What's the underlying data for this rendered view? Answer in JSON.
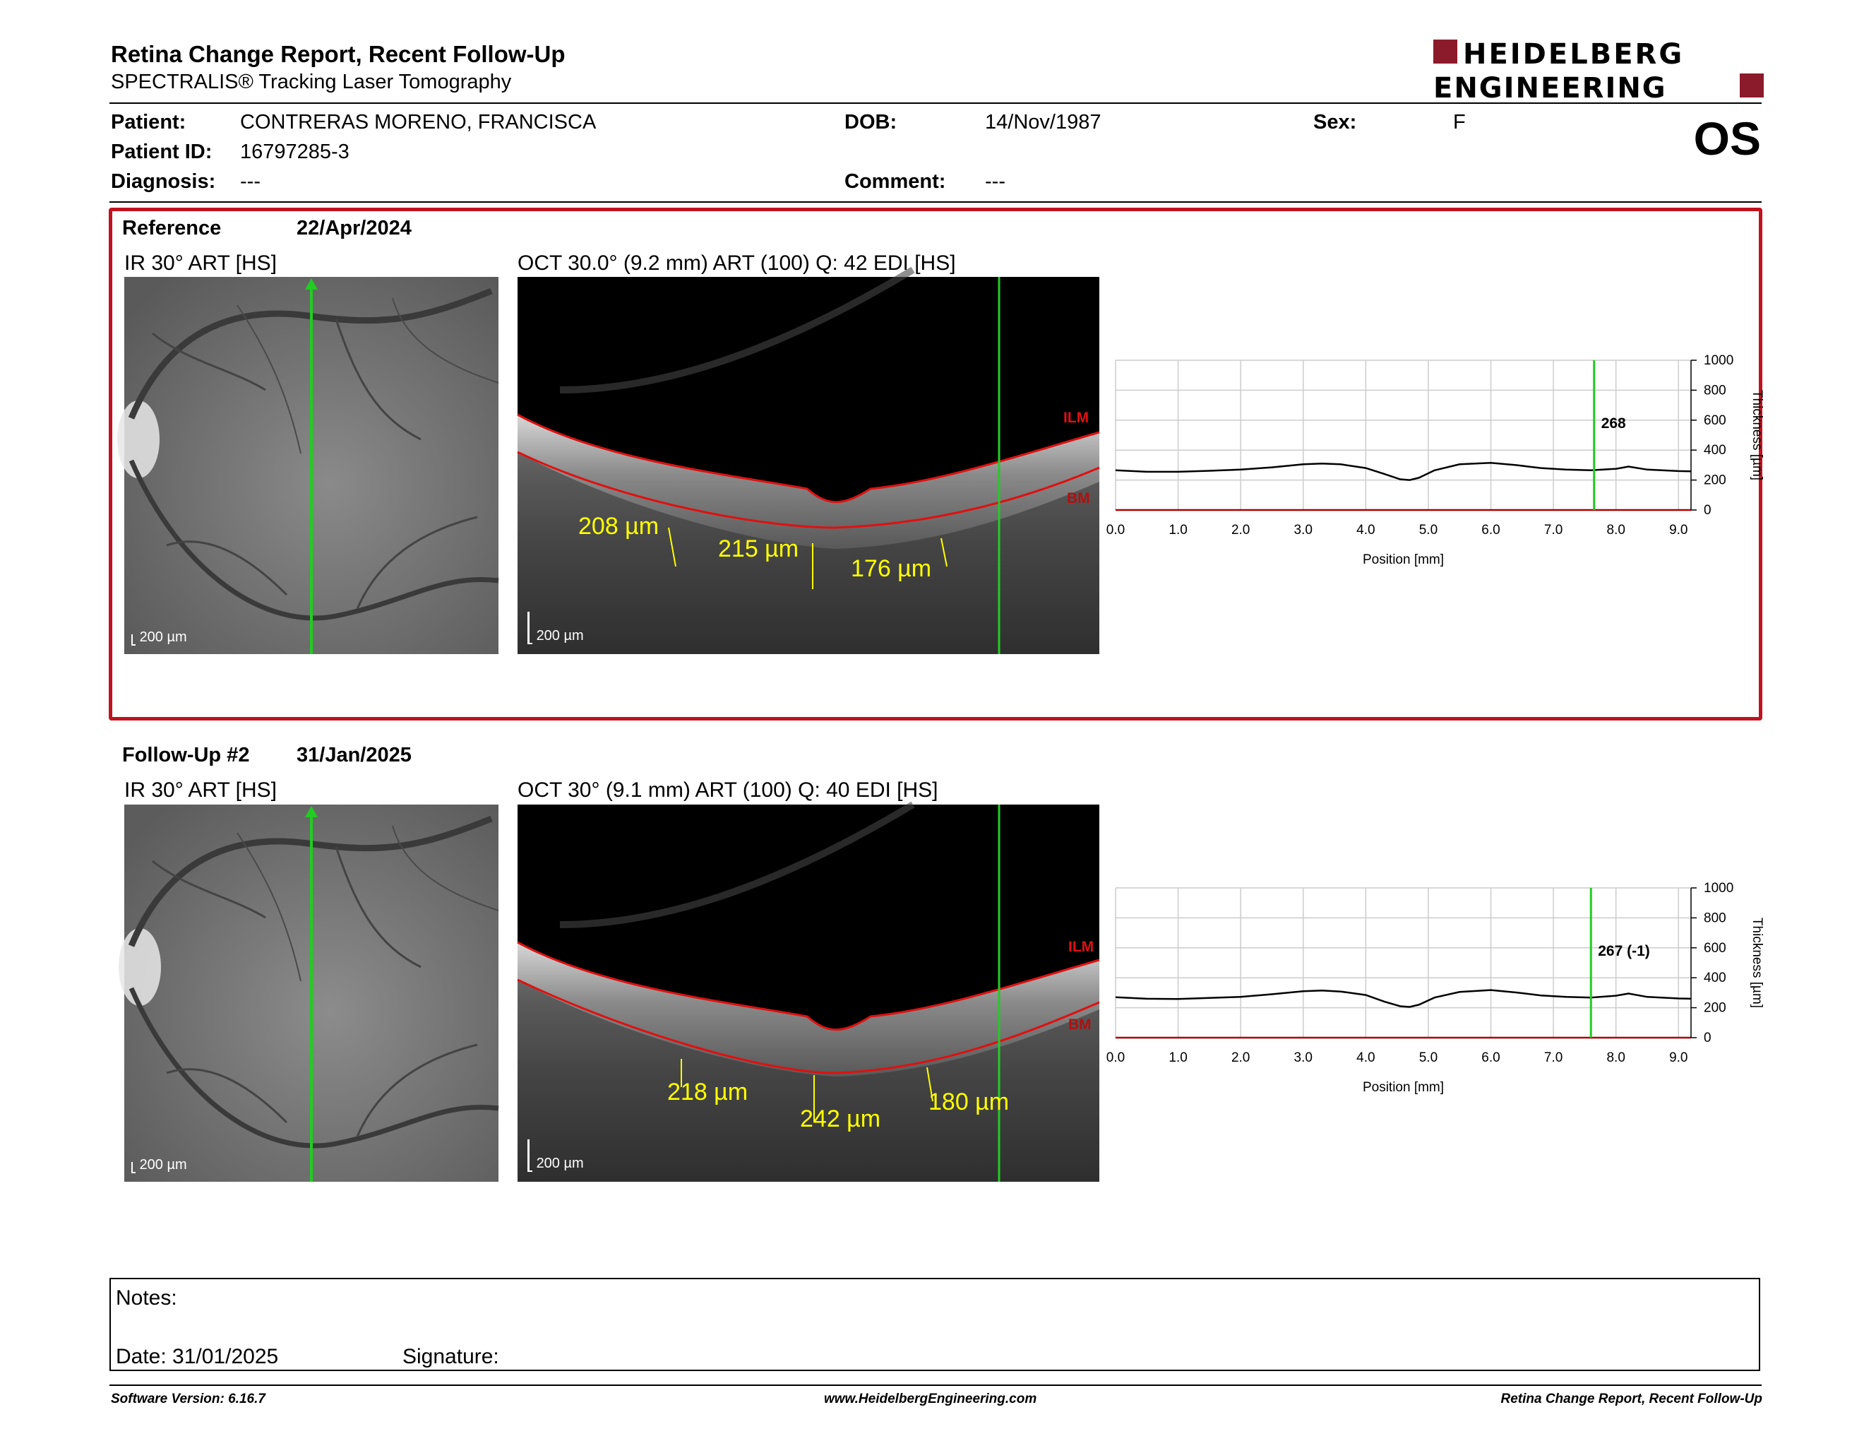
{
  "header": {
    "title": "Retina Change Report, Recent Follow-Up",
    "subtitle": "SPECTRALIS® Tracking Laser Tomography",
    "logo_text_1": "HEIDELBERG",
    "logo_text_2": "ENGINEERING",
    "eye": "OS"
  },
  "patient": {
    "patient_label": "Patient:",
    "patient_value": "CONTRERAS MORENO, FRANCISCA",
    "id_label": "Patient ID:",
    "id_value": "16797285-3",
    "diagnosis_label": "Diagnosis:",
    "diagnosis_value": "---",
    "dob_label": "DOB:",
    "dob_value": "14/Nov/1987",
    "comment_label": "Comment:",
    "comment_value": "---",
    "sex_label": "Sex:",
    "sex_value": "F"
  },
  "reference": {
    "label": "Reference",
    "date": "22/Apr/2024",
    "ir_title": "IR 30° ART [HS]",
    "oct_title": "OCT 30.0° (9.2 mm) ART (100) Q: 42 EDI [HS]",
    "ir_scale": "200 µm",
    "oct_scale": "200 µm",
    "ilm": "ILM",
    "bm": "BM",
    "measurements": [
      "208 µm",
      "215 µm",
      "176 µm"
    ],
    "cursor_value": "268"
  },
  "followup": {
    "label": "Follow-Up #2",
    "date": "31/Jan/2025",
    "ir_title": "IR 30° ART [HS]",
    "oct_title": "OCT 30° (9.1 mm) ART (100) Q: 40 EDI [HS]",
    "ir_scale": "200 µm",
    "oct_scale": "200 µm",
    "ilm": "ILM",
    "bm": "BM",
    "measurements": [
      "218 µm",
      "242 µm",
      "180 µm"
    ],
    "cursor_value": "267 (-1)"
  },
  "chart_data": [
    {
      "type": "line",
      "xlabel": "Position [mm]",
      "ylabel": "Thickness [µm]",
      "xlim": [
        0,
        9.2
      ],
      "ylim": [
        0,
        1000
      ],
      "x_ticks": [
        "0.0",
        "1.0",
        "2.0",
        "3.0",
        "4.0",
        "5.0",
        "6.0",
        "7.0",
        "8.0",
        "9.0"
      ],
      "y_ticks": [
        "0",
        "200",
        "400",
        "600",
        "800",
        "1000"
      ],
      "grid": true,
      "cursor_x": 7.65,
      "cursor_label": "268",
      "x": [
        0,
        0.5,
        1.0,
        1.5,
        2.0,
        2.5,
        3.0,
        3.3,
        3.6,
        4.0,
        4.3,
        4.55,
        4.7,
        4.85,
        5.1,
        5.5,
        6.0,
        6.4,
        6.8,
        7.2,
        7.6,
        8.0,
        8.2,
        8.5,
        9.0,
        9.2
      ],
      "y": [
        265,
        255,
        255,
        262,
        270,
        285,
        305,
        310,
        305,
        280,
        240,
        205,
        200,
        215,
        265,
        305,
        315,
        300,
        280,
        270,
        265,
        275,
        290,
        270,
        260,
        258
      ],
      "line_color": "#000000",
      "cursor_color": "#22cc22"
    },
    {
      "type": "line",
      "xlabel": "Position [mm]",
      "ylabel": "Thickness [µm]",
      "xlim": [
        0,
        9.2
      ],
      "ylim": [
        0,
        1000
      ],
      "x_ticks": [
        "0.0",
        "1.0",
        "2.0",
        "3.0",
        "4.0",
        "5.0",
        "6.0",
        "7.0",
        "8.0",
        "9.0"
      ],
      "y_ticks": [
        "0",
        "200",
        "400",
        "600",
        "800",
        "1000"
      ],
      "grid": true,
      "cursor_x": 7.6,
      "cursor_label": "267 (-1)",
      "x": [
        0,
        0.5,
        1.0,
        1.5,
        2.0,
        2.5,
        3.0,
        3.3,
        3.6,
        4.0,
        4.3,
        4.55,
        4.7,
        4.85,
        5.1,
        5.5,
        6.0,
        6.4,
        6.8,
        7.2,
        7.6,
        8.0,
        8.2,
        8.5,
        9.0,
        9.2
      ],
      "y": [
        270,
        260,
        258,
        265,
        272,
        290,
        310,
        315,
        308,
        285,
        240,
        210,
        205,
        220,
        268,
        305,
        318,
        302,
        282,
        272,
        268,
        280,
        295,
        272,
        262,
        260
      ],
      "line_color": "#000000",
      "cursor_color": "#22cc22"
    }
  ],
  "notes": {
    "notes_label": "Notes:",
    "date_label": "Date: 31/01/2025",
    "signature_label": "Signature:"
  },
  "footer": {
    "software": "Software Version: 6.16.7",
    "website": "www.HeidelbergEngineering.com",
    "report": "Retina Change Report, Recent Follow-Up"
  },
  "colors": {
    "accent_red": "#c1121f",
    "logo_red": "#8b1a2b",
    "measure_yellow": "#ffff00",
    "scan_green": "#22cc22",
    "layer_red": "#e01010"
  }
}
